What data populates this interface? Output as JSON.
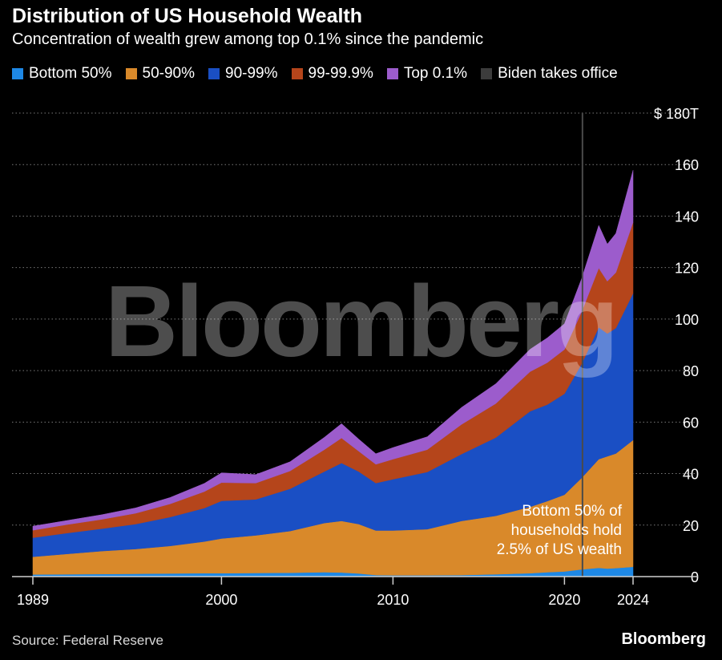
{
  "title": "Distribution of US Household Wealth",
  "subtitle": "Concentration of wealth grew among top 0.1% since the pandemic",
  "source": "Source: Federal Reserve",
  "brand": "Bloomberg",
  "watermark": "Bloomberg",
  "legend": [
    {
      "label": "Bottom 50%",
      "color": "#1e88e5"
    },
    {
      "label": "50-90%",
      "color": "#d9892a"
    },
    {
      "label": "90-99%",
      "color": "#1a4fc4"
    },
    {
      "label": "99-99.9%",
      "color": "#b5451b"
    },
    {
      "label": "Top 0.1%",
      "color": "#9c5ccc"
    },
    {
      "label": "Biden takes office",
      "color": "#3c3c3c"
    }
  ],
  "annotation": [
    "Bottom 50% of",
    "households hold",
    "2.5% of US wealth"
  ],
  "chart_data": {
    "type": "area",
    "stacked": true,
    "title": "Distribution of US Household Wealth",
    "subtitle": "Concentration of wealth grew among top 0.1% since the pandemic",
    "x": [
      1989,
      1991,
      1993,
      1995,
      1997,
      1999,
      2000,
      2002,
      2004,
      2006,
      2007,
      2008,
      2009,
      2010,
      2012,
      2014,
      2016,
      2018,
      2019,
      2020,
      2021,
      2022,
      2022.5,
      2023,
      2024
    ],
    "x_ticks": [
      1989,
      2000,
      2010,
      2020,
      2024
    ],
    "x_range": [
      1989,
      2025.5
    ],
    "y_ticks": [
      0,
      20,
      40,
      60,
      80,
      100,
      120,
      140,
      160,
      180
    ],
    "y_tick_labels": [
      "0",
      "20",
      "40",
      "60",
      "80",
      "100",
      "120",
      "140",
      "160",
      "$ 180T"
    ],
    "ylim": [
      0,
      180
    ],
    "y_unit": "$ trillions",
    "grid": true,
    "legend_position": "top",
    "series": [
      {
        "name": "Bottom 50%",
        "color": "#1e88e5",
        "values": [
          0.8,
          0.9,
          1.0,
          1.1,
          1.2,
          1.3,
          1.3,
          1.4,
          1.5,
          1.7,
          1.6,
          1.2,
          0.6,
          0.5,
          0.5,
          0.6,
          0.9,
          1.3,
          1.7,
          2.0,
          2.8,
          3.4,
          3.1,
          3.3,
          3.8
        ]
      },
      {
        "name": "50-90%",
        "color": "#d9892a",
        "values": [
          6.9,
          7.9,
          8.9,
          9.6,
          10.7,
          12.3,
          13.5,
          14.6,
          16.2,
          19.1,
          20.0,
          19.2,
          17.3,
          17.4,
          17.9,
          21.0,
          22.7,
          25.8,
          27.6,
          29.8,
          35.5,
          42.2,
          43.6,
          44.5,
          49.2
        ]
      },
      {
        "name": "90-99%",
        "color": "#1a4fc4",
        "values": [
          7.4,
          8.1,
          8.7,
          9.7,
          11.2,
          13.0,
          14.6,
          14.0,
          16.4,
          20.0,
          22.5,
          20.4,
          18.4,
          19.9,
          22.2,
          26.0,
          30.4,
          37.1,
          37.5,
          39.2,
          44.3,
          51.2,
          47.7,
          48.7,
          57.0
        ]
      },
      {
        "name": "99-99.9%",
        "color": "#b5451b",
        "values": [
          2.9,
          3.3,
          3.6,
          4.2,
          5.1,
          6.4,
          7.1,
          6.3,
          6.9,
          8.5,
          9.7,
          7.9,
          7.3,
          7.8,
          8.7,
          11.5,
          13.2,
          15.4,
          16.3,
          17.2,
          20.2,
          23.0,
          20.3,
          21.6,
          27.6
        ]
      },
      {
        "name": "Top 0.1%",
        "color": "#9c5ccc",
        "values": [
          1.6,
          1.6,
          1.8,
          2.1,
          2.5,
          3.2,
          3.8,
          3.3,
          3.6,
          4.8,
          5.6,
          4.7,
          4.1,
          4.5,
          5.0,
          6.6,
          7.7,
          8.7,
          9.6,
          10.0,
          12.9,
          16.6,
          14.4,
          15.2,
          20.2
        ]
      }
    ],
    "event_marker": {
      "label": "Biden takes office",
      "x": 2021.05,
      "color": "#3c3c3c"
    }
  }
}
